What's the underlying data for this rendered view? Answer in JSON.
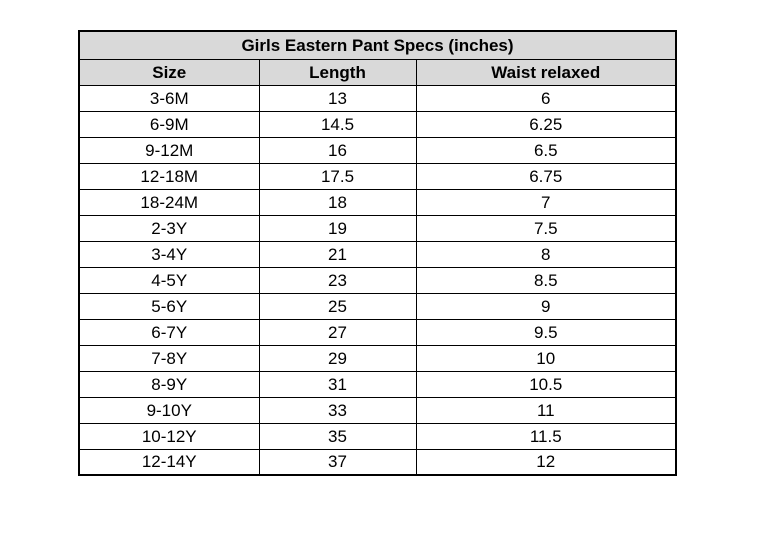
{
  "table": {
    "title": "Girls Eastern Pant Specs (inches)",
    "columns": [
      "Size",
      "Length",
      "Waist relaxed"
    ],
    "rows": [
      {
        "size": "3-6M",
        "length": "13",
        "waist": "6"
      },
      {
        "size": "6-9M",
        "length": "14.5",
        "waist": "6.25"
      },
      {
        "size": "9-12M",
        "length": "16",
        "waist": "6.5"
      },
      {
        "size": "12-18M",
        "length": "17.5",
        "waist": "6.75"
      },
      {
        "size": "18-24M",
        "length": "18",
        "waist": "7"
      },
      {
        "size": "2-3Y",
        "length": "19",
        "waist": "7.5"
      },
      {
        "size": "3-4Y",
        "length": "21",
        "waist": "8"
      },
      {
        "size": "4-5Y",
        "length": "23",
        "waist": "8.5"
      },
      {
        "size": "5-6Y",
        "length": "25",
        "waist": "9"
      },
      {
        "size": "6-7Y",
        "length": "27",
        "waist": "9.5"
      },
      {
        "size": "7-8Y",
        "length": "29",
        "waist": "10"
      },
      {
        "size": "8-9Y",
        "length": "31",
        "waist": "10.5"
      },
      {
        "size": "9-10Y",
        "length": "33",
        "waist": "11"
      },
      {
        "size": "10-12Y",
        "length": "35",
        "waist": "11.5"
      },
      {
        "size": "12-14Y",
        "length": "37",
        "waist": "12"
      }
    ]
  },
  "colors": {
    "page_bg": "#ffffff",
    "header_bg": "#d9d9d9",
    "border_color": "#000000",
    "text_color": "#000000"
  }
}
